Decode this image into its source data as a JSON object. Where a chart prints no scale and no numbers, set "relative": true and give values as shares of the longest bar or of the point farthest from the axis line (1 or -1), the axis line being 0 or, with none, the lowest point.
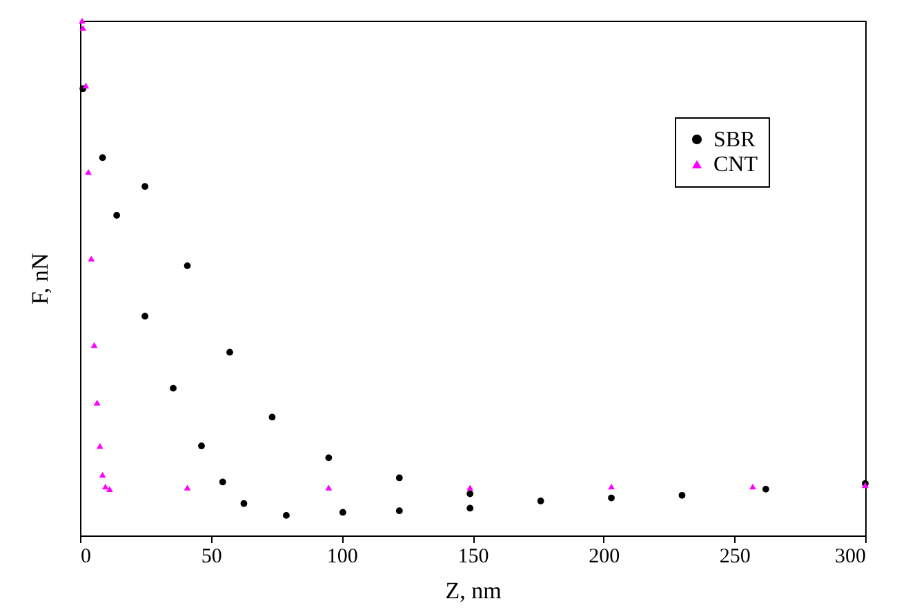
{
  "chart_data": {
    "type": "scatter",
    "xlabel": "Z, nm",
    "ylabel": "F, nN",
    "relative": true,
    "xlim": [
      0,
      300
    ],
    "xticks": [
      0,
      50,
      100,
      150,
      200,
      250,
      300
    ],
    "legend": "top right",
    "grid": false,
    "series": [
      {
        "name": "SBR",
        "color": "#000000",
        "marker": "circle",
        "x": [
          1.1,
          8.6,
          14.0,
          24.8,
          35.6,
          46.4,
          54.5,
          62.6,
          78.8,
          100.4,
          122,
          149,
          24.8,
          41.0,
          57.2,
          73.4,
          95.0,
          122,
          149,
          176,
          203,
          230,
          262,
          300
        ],
        "values": [
          0.868,
          0.734,
          0.622,
          0.426,
          0.286,
          0.174,
          0.104,
          0.062,
          0.039,
          0.045,
          0.048,
          0.053,
          0.678,
          0.524,
          0.356,
          0.23,
          0.151,
          0.112,
          0.081,
          0.067,
          0.073,
          0.078,
          0.09,
          0.101
        ]
      },
      {
        "name": "CNT",
        "color": "#ff00ff",
        "marker": "triangle",
        "x": [
          0.8,
          1.1,
          2.2,
          3.2,
          4.3,
          5.4,
          6.5,
          7.6,
          8.6,
          9.7,
          11.3,
          41,
          95,
          149,
          203,
          257,
          300
        ],
        "values": [
          1.0,
          0.986,
          0.874,
          0.706,
          0.538,
          0.37,
          0.258,
          0.174,
          0.118,
          0.095,
          0.09,
          0.093,
          0.093,
          0.093,
          0.095,
          0.095,
          0.098
        ]
      }
    ]
  }
}
